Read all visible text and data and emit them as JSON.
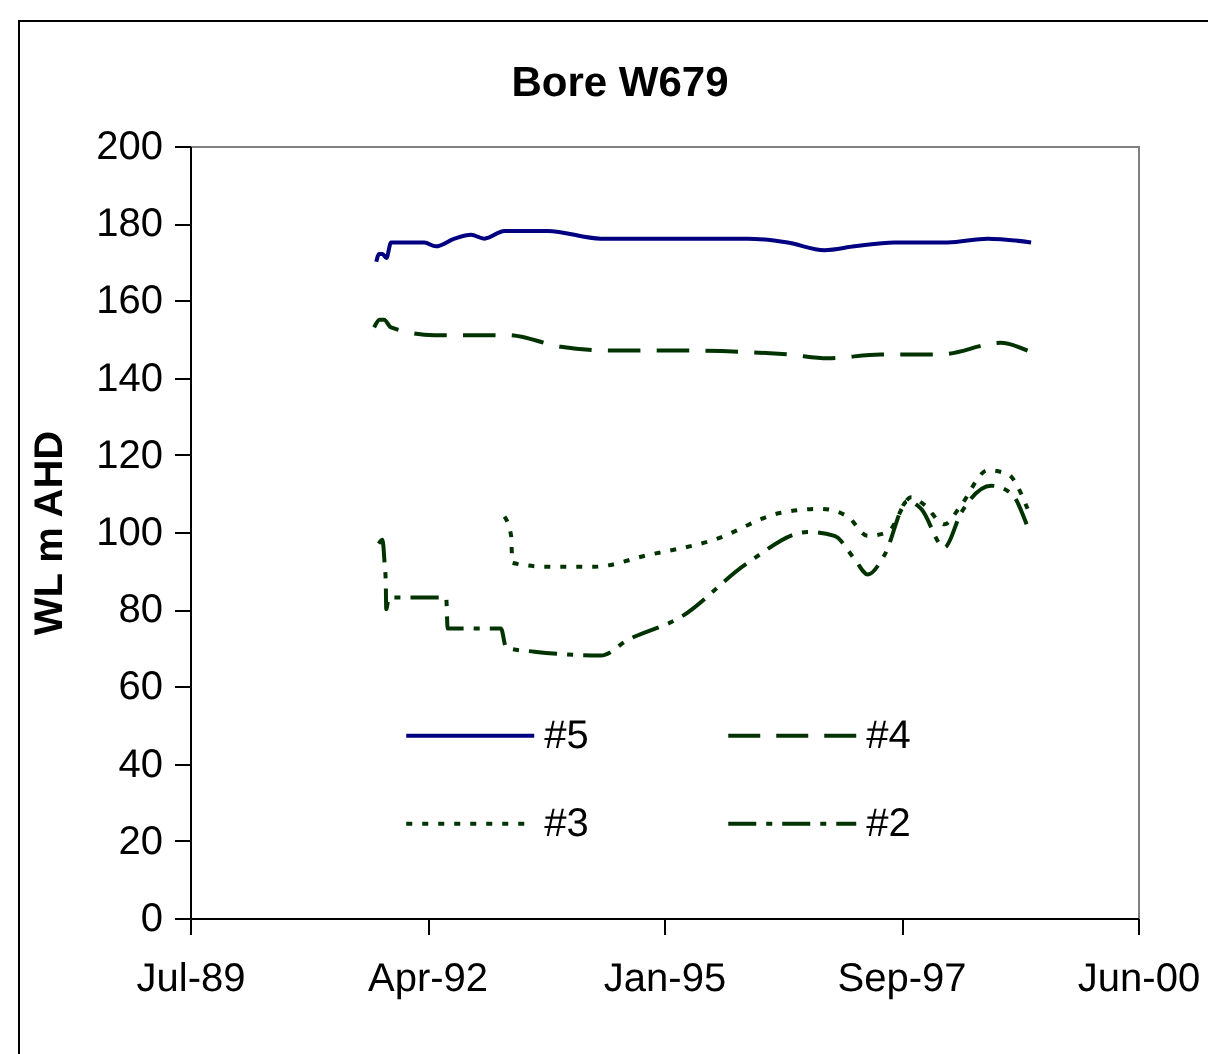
{
  "chart_data": {
    "type": "line",
    "title": "Bore W679",
    "ylabel": "WL m AHD",
    "xlim": [
      "1989-07-11",
      "2000-06-23"
    ],
    "xticks": [
      {
        "value": "1989-07-11",
        "label": "Jul-89"
      },
      {
        "value": "1992-04-06",
        "label": "Apr-92"
      },
      {
        "value": "1995-01-01",
        "label": "Jan-95"
      },
      {
        "value": "1997-09-27",
        "label": "Sep-97"
      },
      {
        "value": "2000-06-23",
        "label": "Jun-00"
      }
    ],
    "ylim": [
      0,
      200
    ],
    "yticks": [
      0,
      20,
      40,
      60,
      80,
      100,
      120,
      140,
      160,
      180,
      200
    ],
    "legend": "bottom",
    "series": [
      {
        "name": "#5",
        "color": "#000080",
        "line_style": "solid",
        "x": [
          "1991-09-05",
          "1991-09-17",
          "1991-10-01",
          "1991-10-18",
          "1991-11-06",
          "1992-01-16",
          "1992-03-26",
          "1992-05-13",
          "1992-07-31",
          "1992-10-09",
          "1992-12-04",
          "1993-02-27",
          "1993-08-28",
          "1994-04-10",
          "1995-03-14",
          "1995-12-20",
          "1996-06-06",
          "1996-11-08",
          "1997-03-15",
          "1997-08-30",
          "1998-04-12",
          "1998-09-28",
          "1999-03-30"
        ],
        "values": [
          170,
          172,
          172,
          171,
          175,
          175,
          175,
          174,
          176,
          177,
          176,
          178,
          178,
          176,
          176,
          176,
          175,
          173,
          174,
          175,
          175,
          176,
          175
        ]
      },
      {
        "name": "#4",
        "color": "#003300",
        "line_style": "dashed",
        "x": [
          "1991-08-27",
          "1991-09-19",
          "1991-10-08",
          "1991-11-06",
          "1992-05-07",
          "1992-10-23",
          "1993-03-12",
          "1993-10-23",
          "1994-06-05",
          "1995-03-14",
          "1996-06-06",
          "1996-11-22",
          "1997-07-04",
          "1998-03-14",
          "1998-11-22",
          "1999-03-15"
        ],
        "values": [
          153,
          155,
          155,
          153,
          151,
          151,
          151,
          148,
          147,
          147,
          146,
          145,
          146,
          146,
          149,
          147
        ]
      },
      {
        "name": "#3",
        "color": "#003300",
        "line_style": "dotted",
        "x": [
          "1993-02-27",
          "1993-03-27",
          "1993-04-01",
          "1993-08-28",
          "1994-03-13",
          "1994-10-24",
          "1995-08-02",
          "1996-05-09",
          "1996-10-25",
          "1997-02-14",
          "1997-05-10",
          "1997-08-02",
          "1997-11-09",
          "1998-01-04",
          "1998-03-29",
          "1998-06-08",
          "1998-09-28",
          "1998-12-21",
          "1999-03-15"
        ],
        "values": [
          104,
          99,
          92,
          91,
          91,
          94,
          98,
          105,
          106,
          104,
          99,
          100,
          109,
          107,
          102,
          107,
          116,
          115,
          106
        ]
      },
      {
        "name": "#2",
        "color": "#003300",
        "line_style": "dashdot",
        "x": [
          "1991-09-15",
          "1991-10-01",
          "1991-10-10",
          "1991-10-15",
          "1991-10-17",
          "1991-10-28",
          "1992-06-26",
          "1992-07-02",
          "1993-02-12",
          "1993-03-06",
          "1993-07-03",
          "1994-04-10",
          "1994-07-31",
          "1995-03-14",
          "1995-12-20",
          "1996-08-29",
          "1996-12-20",
          "1997-03-15",
          "1997-05-10",
          "1997-07-19",
          "1997-10-25",
          "1997-12-21",
          "1998-03-29",
          "1998-06-08",
          "1998-10-12",
          "1999-01-05",
          "1999-03-11"
        ],
        "values": [
          97,
          98,
          92,
          87,
          80,
          83,
          83,
          75,
          75,
          70,
          69,
          68,
          72,
          78,
          92,
          100,
          99,
          93,
          89,
          94,
          108,
          106,
          96,
          105,
          112,
          110,
          102
        ]
      }
    ]
  }
}
